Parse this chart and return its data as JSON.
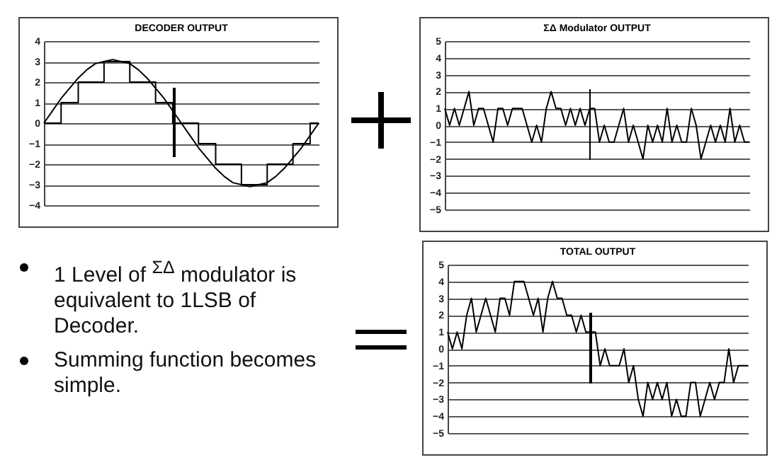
{
  "chart_data": [
    {
      "type": "line",
      "title": "DECODER OUTPUT",
      "categories": [
        null,
        null,
        null,
        null,
        null,
        null,
        null,
        null,
        null,
        null,
        null,
        null,
        null,
        null,
        null,
        null,
        null,
        null,
        null,
        null,
        null,
        null,
        null,
        null,
        null,
        null,
        null,
        null,
        null,
        null,
        null,
        null,
        null
      ],
      "ylim": [
        -4,
        4
      ],
      "yticks": [
        -4,
        -3,
        -2,
        -1,
        0,
        1,
        2,
        3,
        4
      ],
      "grid": "y",
      "tick_labels": "y",
      "series": [
        {
          "type": "line",
          "color": "#000000",
          "values": [
            0,
            0.6,
            1.2,
            1.7,
            2.2,
            2.6,
            2.9,
            3.0,
            3.1,
            3.0,
            2.9,
            2.6,
            2.2,
            1.7,
            1.2,
            0.6,
            0,
            -0.6,
            -1.2,
            -1.7,
            -2.2,
            -2.6,
            -2.9,
            -3.0,
            -3.1,
            -3.0,
            -2.9,
            -2.6,
            -2.2,
            -1.7,
            -1.2,
            -0.6,
            0
          ]
        },
        {
          "type": "step",
          "color": "#000000",
          "values": [
            0,
            0,
            1,
            1,
            2,
            2,
            2,
            3,
            3,
            3,
            2,
            2,
            2,
            1,
            1,
            0,
            0,
            0,
            -1,
            -1,
            -2,
            -2,
            -2,
            -3,
            -3,
            -3,
            -2,
            -2,
            -2,
            -1,
            -1,
            0,
            0
          ]
        }
      ]
    },
    {
      "type": "line",
      "title": "ΣΔ Modulator OUTPUT",
      "categories": [
        null,
        null,
        null,
        null,
        null,
        null,
        null,
        null,
        null,
        null,
        null,
        null,
        null,
        null,
        null,
        null,
        null,
        null,
        null,
        null,
        null,
        null,
        null,
        null,
        null,
        null,
        null,
        null,
        null,
        null,
        null,
        null,
        null,
        null,
        null,
        null,
        null,
        null,
        null,
        null,
        null,
        null,
        null,
        null,
        null,
        null,
        null,
        null,
        null,
        null,
        null,
        null,
        null,
        null,
        null,
        null,
        null,
        null,
        null,
        null,
        null,
        null,
        null,
        null
      ],
      "ylim": [
        -5,
        5
      ],
      "yticks": [
        -5,
        -4,
        -3,
        -2,
        -1,
        0,
        1,
        2,
        3,
        4,
        5
      ],
      "grid": "y",
      "tick_labels": "y",
      "series": [
        {
          "color": "#000000",
          "values": [
            1,
            0,
            1,
            0,
            1,
            2,
            0,
            1,
            1,
            0,
            -1,
            1,
            1,
            0,
            1,
            1,
            1,
            0,
            -1,
            0,
            -1,
            1,
            2,
            1,
            1,
            0,
            1,
            0,
            1,
            0,
            1,
            1,
            -1,
            0,
            -1,
            -1,
            0,
            1,
            -1,
            0,
            -1,
            -2,
            0,
            -1,
            0,
            -1,
            1,
            -1,
            0,
            -1,
            -1,
            1,
            0,
            -2,
            -1,
            0,
            -1,
            0,
            -1,
            1,
            -1,
            0,
            -1,
            -1
          ]
        }
      ]
    },
    {
      "type": "line",
      "title": "TOTAL OUTPUT",
      "categories": [
        null,
        null,
        null,
        null,
        null,
        null,
        null,
        null,
        null,
        null,
        null,
        null,
        null,
        null,
        null,
        null,
        null,
        null,
        null,
        null,
        null,
        null,
        null,
        null,
        null,
        null,
        null,
        null,
        null,
        null,
        null,
        null,
        null,
        null,
        null,
        null,
        null,
        null,
        null,
        null,
        null,
        null,
        null,
        null,
        null,
        null,
        null,
        null,
        null,
        null,
        null,
        null,
        null,
        null,
        null,
        null,
        null,
        null,
        null,
        null,
        null,
        null,
        null,
        null
      ],
      "ylim": [
        -5,
        5
      ],
      "yticks": [
        -5,
        -4,
        -3,
        -2,
        -1,
        0,
        1,
        2,
        3,
        4,
        5
      ],
      "grid": "y",
      "tick_labels": "y",
      "series": [
        {
          "color": "#000000",
          "values": [
            1,
            0,
            1,
            0,
            2,
            3,
            1,
            2,
            3,
            2,
            1,
            3,
            3,
            2,
            4,
            4,
            4,
            3,
            2,
            3,
            1,
            3,
            4,
            3,
            3,
            2,
            2,
            1,
            2,
            1,
            1,
            1,
            -1,
            0,
            -1,
            -1,
            -1,
            0,
            -2,
            -1,
            -3,
            -4,
            -2,
            -3,
            -2,
            -3,
            -2,
            -4,
            -3,
            -4,
            -4,
            -2,
            -2,
            -4,
            -3,
            -2,
            -3,
            -2,
            -2,
            0,
            -2,
            -1,
            -1,
            -1
          ]
        }
      ]
    },
    {
      "type": "other",
      "annotations": [
        "1 Level of $^{ΣΔ}$ modulator is equivalent to 1LSB of Decoder.",
        "Summing function becomes simple."
      ]
    }
  ]
}
